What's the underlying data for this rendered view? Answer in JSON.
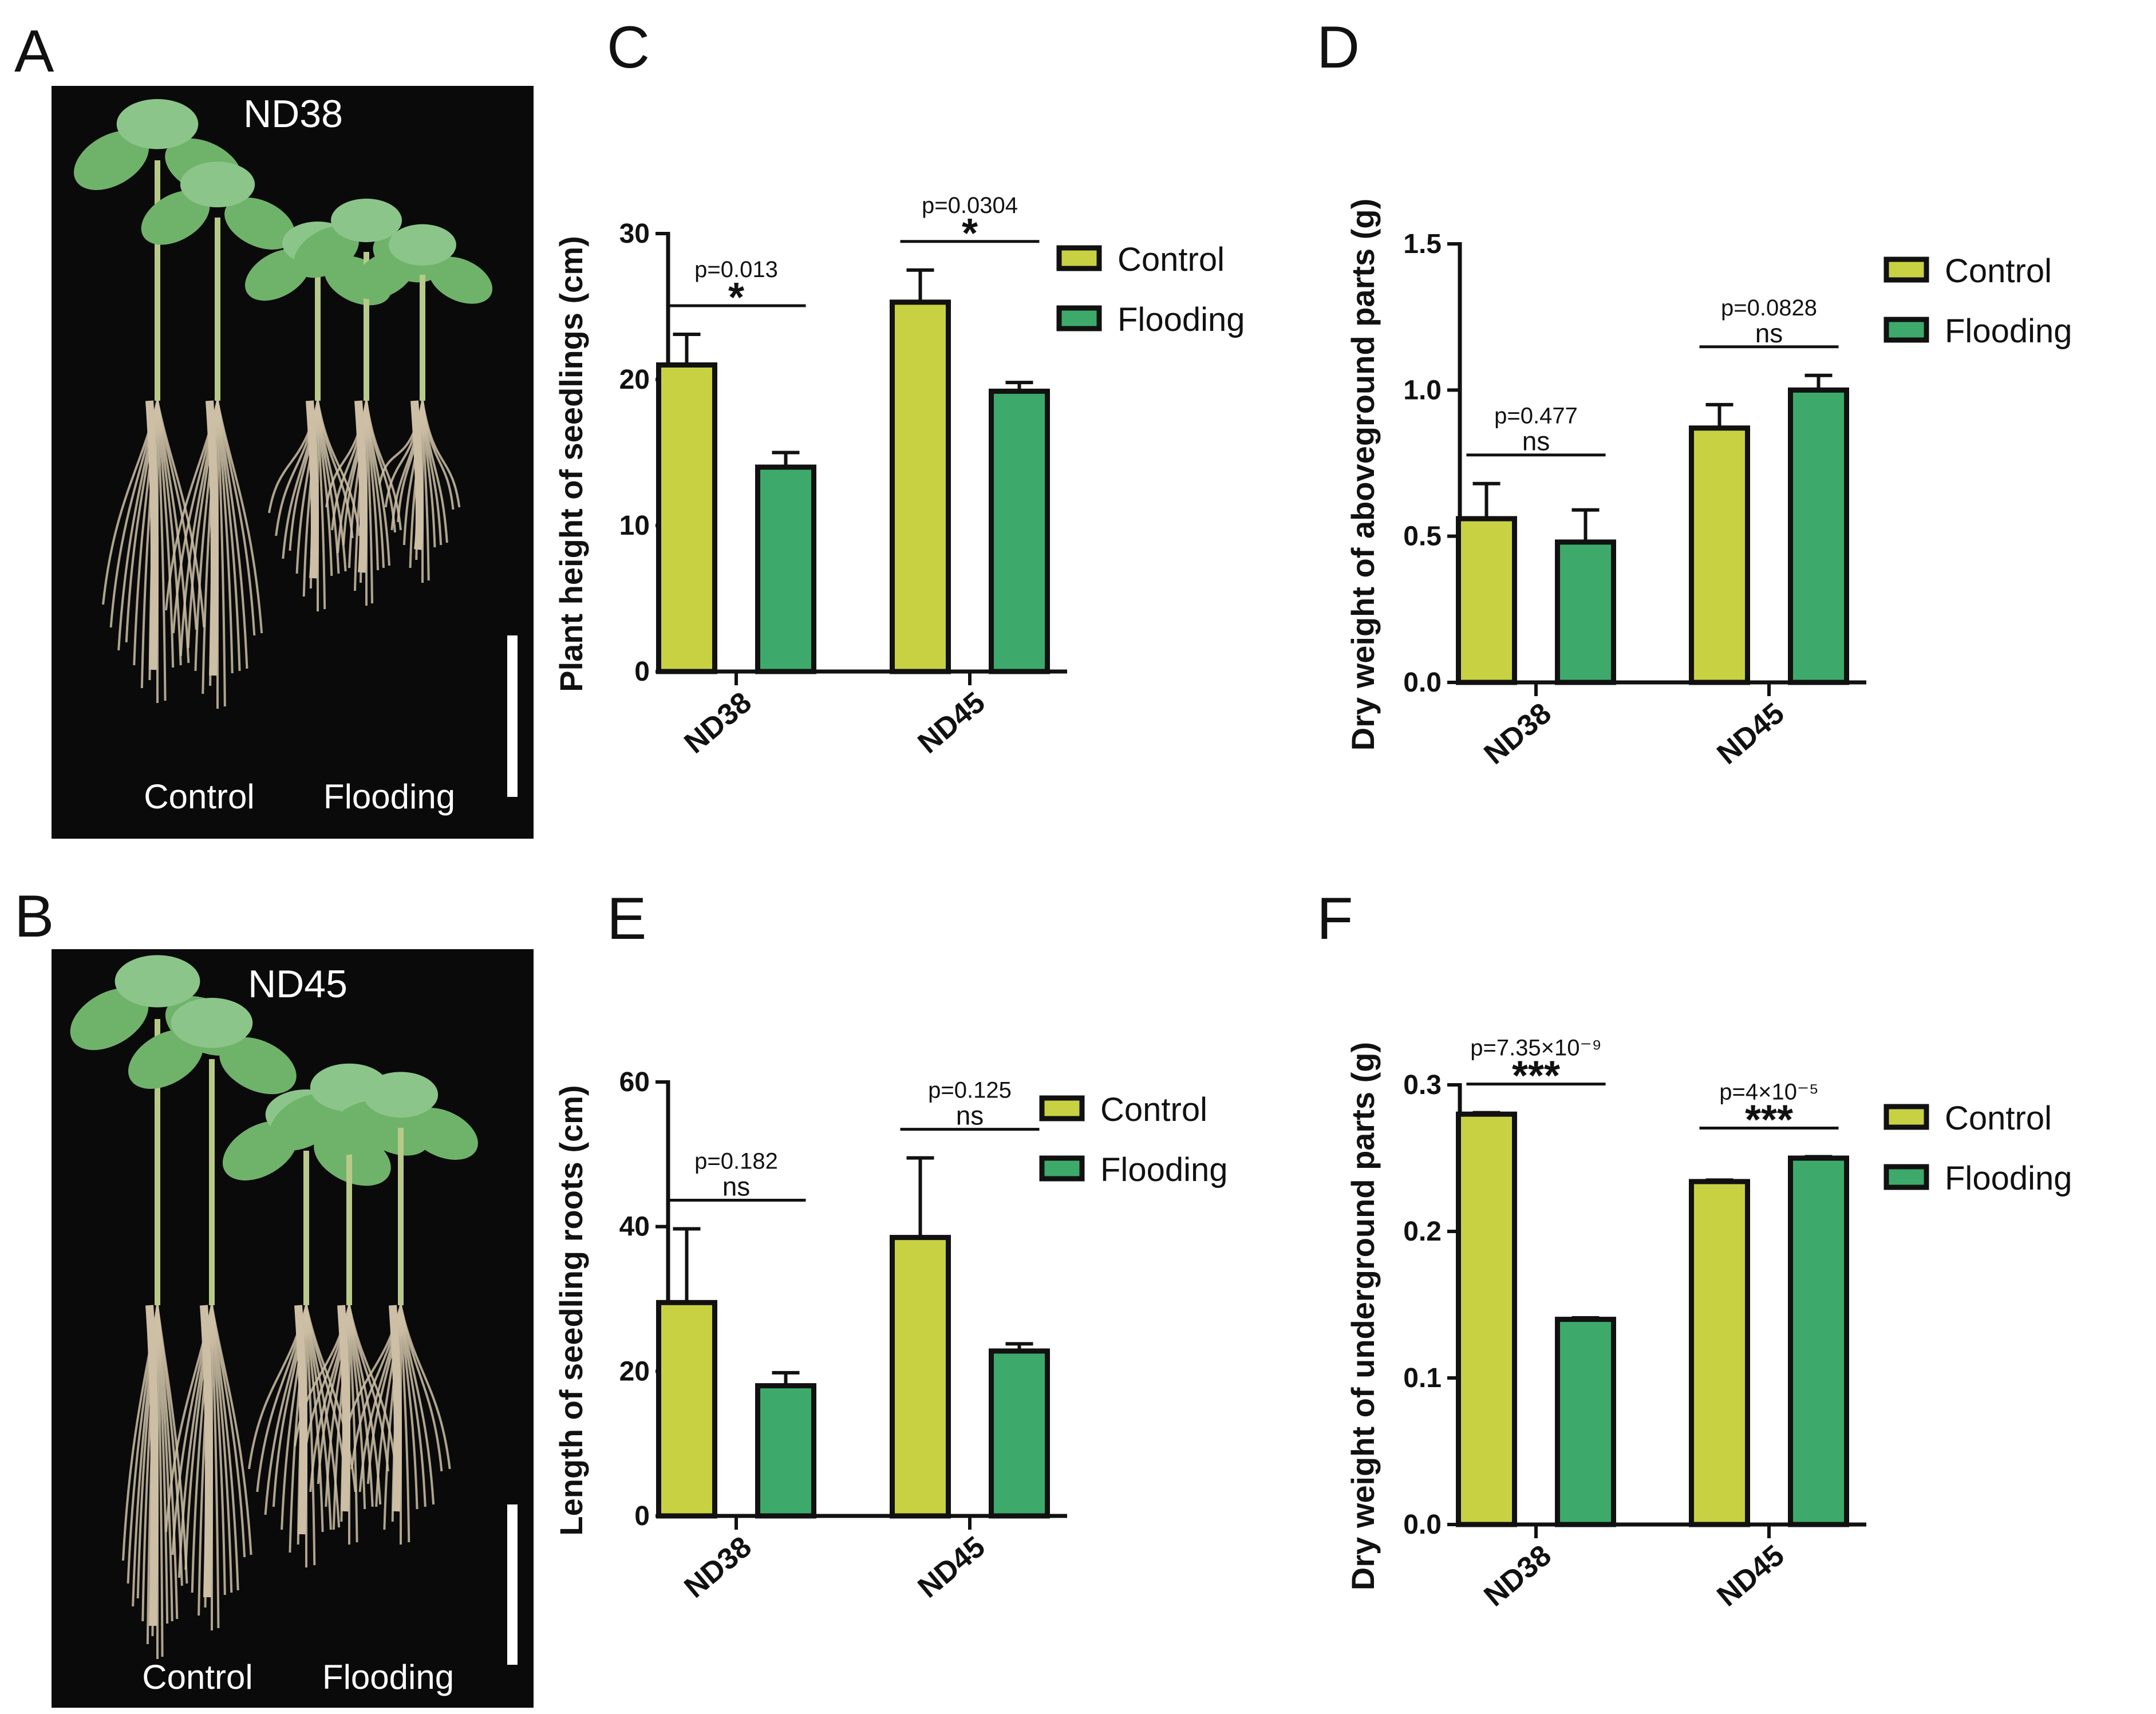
{
  "colors": {
    "control": "#c8d142",
    "flooding": "#3daa6c",
    "photo_bg": "#0a0a0a",
    "leaf": "#6fb36a",
    "leaf_light": "#8cc58a",
    "stem": "#b8c98a",
    "root": "#cdbfa6"
  },
  "panels": {
    "A": {
      "letter": "A",
      "title": "ND38",
      "left_label": "Control",
      "right_label": "Flooding"
    },
    "B": {
      "letter": "B",
      "title": "ND45",
      "left_label": "Control",
      "right_label": "Flooding"
    }
  },
  "chart_data": [
    {
      "panel": "C",
      "type": "bar",
      "ylabel": "Plant height of seedlings (cm)",
      "categories": [
        "ND38",
        "ND45"
      ],
      "ylim": [
        0,
        30
      ],
      "yticks": [
        0,
        10,
        20,
        30
      ],
      "series": [
        {
          "name": "Control",
          "values": [
            21,
            25.3
          ],
          "errors": [
            2.1,
            2.2
          ]
        },
        {
          "name": "Flooding",
          "values": [
            14,
            19.2
          ],
          "errors": [
            1.0,
            0.6
          ]
        }
      ],
      "annotations": [
        {
          "category": "ND38",
          "pvalue": "p=0.013",
          "sig": "*"
        },
        {
          "category": "ND45",
          "pvalue": "p=0.0304",
          "sig": "*"
        }
      ]
    },
    {
      "panel": "D",
      "type": "bar",
      "ylabel": "Dry weight of aboveground parts (g)",
      "categories": [
        "ND38",
        "ND45"
      ],
      "ylim": [
        0,
        1.5
      ],
      "yticks": [
        "0.0",
        "0.5",
        "1.0",
        "1.5"
      ],
      "series": [
        {
          "name": "Control",
          "values": [
            0.56,
            0.87
          ],
          "errors": [
            0.12,
            0.08
          ]
        },
        {
          "name": "Flooding",
          "values": [
            0.48,
            1.0
          ],
          "errors": [
            0.11,
            0.05
          ]
        }
      ],
      "annotations": [
        {
          "category": "ND38",
          "pvalue": "p=0.477",
          "sig": "ns"
        },
        {
          "category": "ND45",
          "pvalue": "p=0.0828",
          "sig": "ns"
        }
      ]
    },
    {
      "panel": "E",
      "type": "bar",
      "ylabel": "Length of seedling roots (cm)",
      "categories": [
        "ND38",
        "ND45"
      ],
      "ylim": [
        0,
        60
      ],
      "yticks": [
        0,
        20,
        40,
        60
      ],
      "series": [
        {
          "name": "Control",
          "values": [
            29.5,
            38.5
          ],
          "errors": [
            10.2,
            11.0
          ]
        },
        {
          "name": "Flooding",
          "values": [
            18,
            22.8
          ],
          "errors": [
            1.8,
            1.0
          ]
        }
      ],
      "annotations": [
        {
          "category": "ND38",
          "pvalue": "p=0.182",
          "sig": "ns"
        },
        {
          "category": "ND45",
          "pvalue": "p=0.125",
          "sig": "ns"
        }
      ]
    },
    {
      "panel": "F",
      "type": "bar",
      "ylabel": "Dry weight of underground parts (g)",
      "categories": [
        "ND38",
        "ND45"
      ],
      "ylim": [
        0,
        0.3
      ],
      "yticks": [
        "0.0",
        "0.1",
        "0.2",
        "0.3"
      ],
      "series": [
        {
          "name": "Control",
          "values": [
            0.28,
            0.234
          ],
          "errors": [
            0.001,
            0.001
          ]
        },
        {
          "name": "Flooding",
          "values": [
            0.14,
            0.25
          ],
          "errors": [
            0.001,
            0.001
          ]
        }
      ],
      "annotations": [
        {
          "category": "ND38",
          "pvalue": "p=7.35×10⁻⁹",
          "sig": "***"
        },
        {
          "category": "ND45",
          "pvalue": "p=4×10⁻⁵",
          "sig": "***"
        }
      ]
    }
  ]
}
